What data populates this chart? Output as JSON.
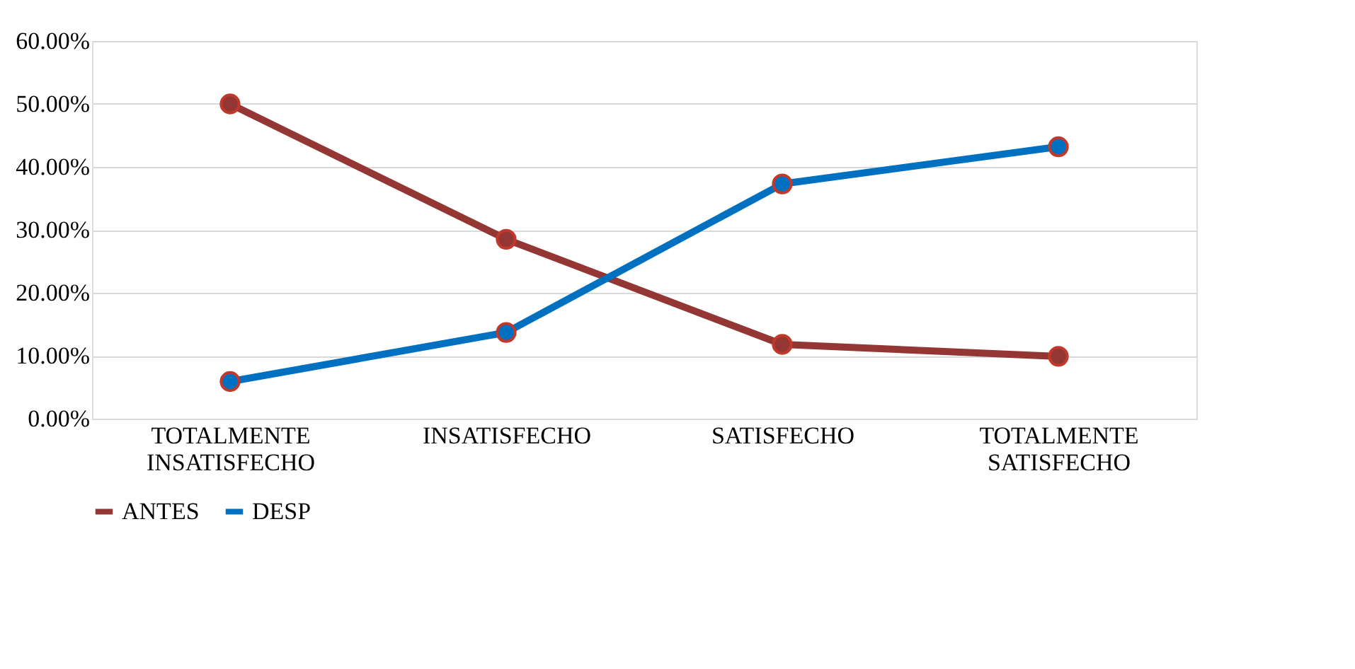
{
  "chart_data": {
    "type": "line",
    "categories": [
      "TOTALMENTE INSATISFECHO",
      "INSATISFECHO",
      "SATISFECHO",
      "TOTALMENTE SATISFECHO"
    ],
    "series": [
      {
        "name": "ANTES",
        "color": "#943634",
        "values": [
          50,
          28.5,
          11.8,
          9.9
        ]
      },
      {
        "name": "DESP",
        "color": "#0070c0",
        "values": [
          5.9,
          13.7,
          37.3,
          43.2
        ]
      }
    ],
    "ylim": [
      0,
      60
    ],
    "yticks": [
      {
        "value": 0,
        "label": "0.00%"
      },
      {
        "value": 10,
        "label": "10.00%"
      },
      {
        "value": 20,
        "label": "20.00%"
      },
      {
        "value": 30,
        "label": "30.00%"
      },
      {
        "value": 40,
        "label": "40.00%"
      },
      {
        "value": 50,
        "label": "50.00%"
      },
      {
        "value": 60,
        "label": "60.00%"
      }
    ],
    "grid": "y",
    "legend": "bottom",
    "marker": "circle",
    "line_style": "solid"
  }
}
